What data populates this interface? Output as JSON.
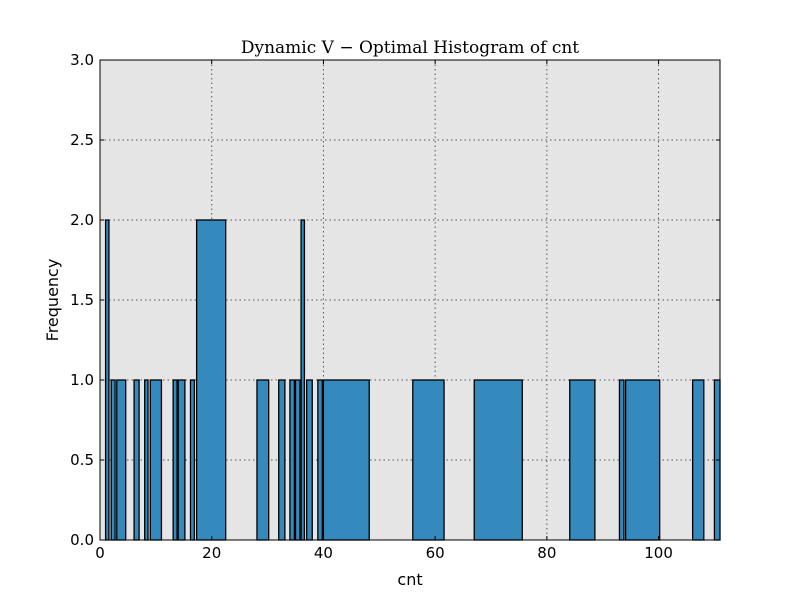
{
  "chart_data": {
    "type": "bar",
    "title": "Dynamic V − Optimal Histogram of cnt",
    "xlabel": "cnt",
    "ylabel": "Frequency",
    "xlim": [
      0,
      111
    ],
    "ylim": [
      0,
      3.0
    ],
    "grid": true,
    "background": "#E5E5E5",
    "bar_color": "#348ABD",
    "xticks": [
      "0",
      "20",
      "40",
      "60",
      "80",
      "100"
    ],
    "yticks": [
      "0.0",
      "0.5",
      "1.0",
      "1.5",
      "2.0",
      "2.5",
      "3.0"
    ],
    "bins": [
      {
        "x0": 1.0,
        "x1": 1.6,
        "count": 2
      },
      {
        "x0": 2.0,
        "x1": 2.7,
        "count": 1
      },
      {
        "x0": 3.0,
        "x1": 4.6,
        "count": 1
      },
      {
        "x0": 6.1,
        "x1": 7.0,
        "count": 1
      },
      {
        "x0": 8.0,
        "x1": 8.6,
        "count": 1
      },
      {
        "x0": 9.0,
        "x1": 11.0,
        "count": 1
      },
      {
        "x0": 13.1,
        "x1": 13.8,
        "count": 1
      },
      {
        "x0": 14.0,
        "x1": 15.2,
        "count": 1
      },
      {
        "x0": 16.2,
        "x1": 16.9,
        "count": 1
      },
      {
        "x0": 17.3,
        "x1": 22.5,
        "count": 2
      },
      {
        "x0": 28.1,
        "x1": 30.2,
        "count": 1
      },
      {
        "x0": 32.0,
        "x1": 33.1,
        "count": 1
      },
      {
        "x0": 34.0,
        "x1": 34.8,
        "count": 1
      },
      {
        "x0": 35.0,
        "x1": 35.8,
        "count": 1
      },
      {
        "x0": 36.0,
        "x1": 36.6,
        "count": 2
      },
      {
        "x0": 37.0,
        "x1": 38.0,
        "count": 1
      },
      {
        "x0": 39.0,
        "x1": 39.8,
        "count": 1
      },
      {
        "x0": 40.0,
        "x1": 48.2,
        "count": 1
      },
      {
        "x0": 56.0,
        "x1": 61.6,
        "count": 1
      },
      {
        "x0": 67.0,
        "x1": 75.6,
        "count": 1
      },
      {
        "x0": 84.1,
        "x1": 88.6,
        "count": 1
      },
      {
        "x0": 93.0,
        "x1": 93.8,
        "count": 1
      },
      {
        "x0": 94.1,
        "x1": 100.2,
        "count": 1
      },
      {
        "x0": 106.1,
        "x1": 108.1,
        "count": 1
      },
      {
        "x0": 110.0,
        "x1": 111.0,
        "count": 1
      }
    ]
  }
}
